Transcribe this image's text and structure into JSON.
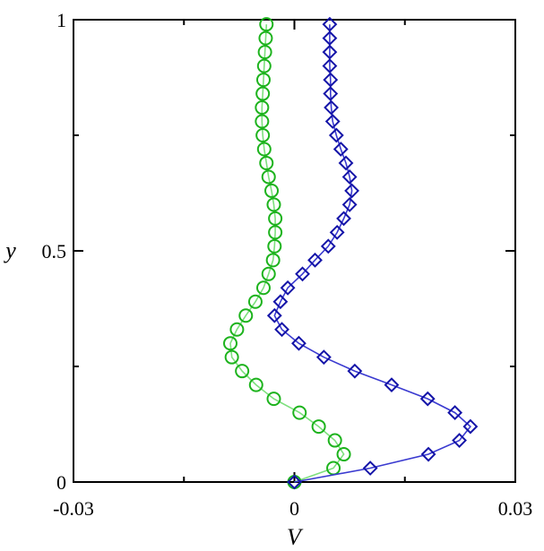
{
  "chart_data": {
    "type": "line",
    "xlabel": "V",
    "ylabel": "y",
    "xlim": [
      -0.03,
      0.03
    ],
    "ylim": [
      0,
      1
    ],
    "x_ticks": [
      -0.03,
      0,
      0.03
    ],
    "x_tick_labels": [
      "-0.03",
      "0",
      "0.03"
    ],
    "y_ticks": [
      0,
      0.5,
      1
    ],
    "y_tick_labels": [
      "0",
      "0.5",
      "1"
    ],
    "grid": false,
    "series": [
      {
        "color": "#1db31d",
        "line_color": "#7de07d",
        "marker": "circle",
        "points": [
          [
            0.0,
            0.0
          ],
          [
            0.0053,
            0.03
          ],
          [
            0.0067,
            0.06
          ],
          [
            0.0055,
            0.09
          ],
          [
            0.0033,
            0.12
          ],
          [
            0.0007,
            0.15
          ],
          [
            -0.0028,
            0.18
          ],
          [
            -0.0052,
            0.21
          ],
          [
            -0.0071,
            0.24
          ],
          [
            -0.0085,
            0.27
          ],
          [
            -0.0087,
            0.3
          ],
          [
            -0.0078,
            0.33
          ],
          [
            -0.0066,
            0.36
          ],
          [
            -0.0053,
            0.39
          ],
          [
            -0.0042,
            0.42
          ],
          [
            -0.0035,
            0.45
          ],
          [
            -0.0029,
            0.48
          ],
          [
            -0.0027,
            0.51
          ],
          [
            -0.0026,
            0.54
          ],
          [
            -0.0026,
            0.57
          ],
          [
            -0.0028,
            0.6
          ],
          [
            -0.0031,
            0.63
          ],
          [
            -0.0035,
            0.66
          ],
          [
            -0.0038,
            0.69
          ],
          [
            -0.0041,
            0.72
          ],
          [
            -0.0043,
            0.75
          ],
          [
            -0.0044,
            0.78
          ],
          [
            -0.0044,
            0.81
          ],
          [
            -0.0043,
            0.84
          ],
          [
            -0.0042,
            0.87
          ],
          [
            -0.0041,
            0.9
          ],
          [
            -0.004,
            0.93
          ],
          [
            -0.0039,
            0.96
          ],
          [
            -0.0038,
            0.99
          ]
        ]
      },
      {
        "color": "#1414a8",
        "line_color": "#3a3ad0",
        "marker": "diamond",
        "points": [
          [
            0.0,
            0.0
          ],
          [
            0.0103,
            0.03
          ],
          [
            0.0182,
            0.06
          ],
          [
            0.0224,
            0.09
          ],
          [
            0.0239,
            0.12
          ],
          [
            0.0218,
            0.15
          ],
          [
            0.0181,
            0.18
          ],
          [
            0.0132,
            0.21
          ],
          [
            0.0082,
            0.24
          ],
          [
            0.004,
            0.27
          ],
          [
            0.0006,
            0.3
          ],
          [
            -0.0017,
            0.33
          ],
          [
            -0.0027,
            0.36
          ],
          [
            -0.0019,
            0.39
          ],
          [
            -0.0009,
            0.42
          ],
          [
            0.0011,
            0.45
          ],
          [
            0.0028,
            0.48
          ],
          [
            0.0046,
            0.51
          ],
          [
            0.0058,
            0.54
          ],
          [
            0.0067,
            0.57
          ],
          [
            0.0075,
            0.6
          ],
          [
            0.0078,
            0.63
          ],
          [
            0.0075,
            0.66
          ],
          [
            0.007,
            0.69
          ],
          [
            0.0063,
            0.72
          ],
          [
            0.0057,
            0.75
          ],
          [
            0.0052,
            0.78
          ],
          [
            0.005,
            0.81
          ],
          [
            0.0049,
            0.84
          ],
          [
            0.0049,
            0.87
          ],
          [
            0.0048,
            0.9
          ],
          [
            0.0048,
            0.93
          ],
          [
            0.0048,
            0.96
          ],
          [
            0.0048,
            0.99
          ]
        ]
      }
    ]
  }
}
